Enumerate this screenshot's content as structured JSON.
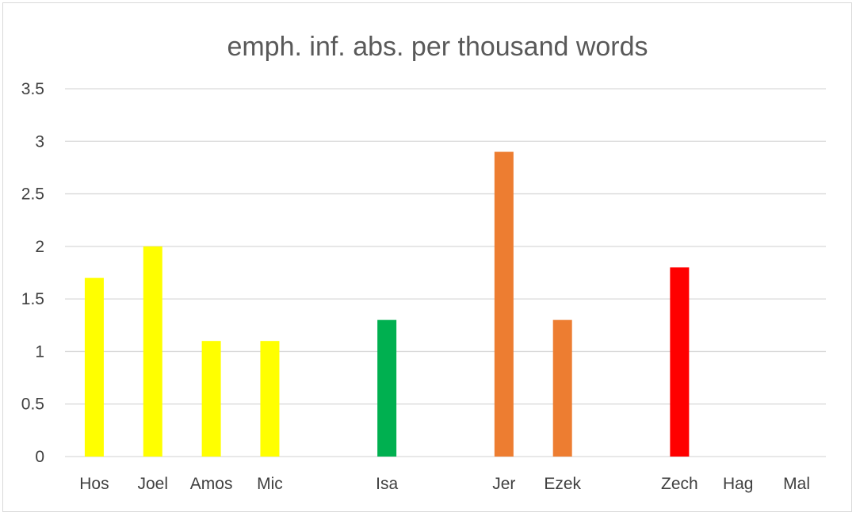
{
  "chart_data": {
    "type": "bar",
    "title": "emph. inf. abs. per thousand words",
    "xlabel": "",
    "ylabel": "",
    "ylim": [
      0,
      3.5
    ],
    "y_ticks": [
      "0",
      "0.5",
      "1",
      "1.5",
      "2",
      "2.5",
      "3",
      "3.5"
    ],
    "grid": true,
    "legend": "none",
    "categories": [
      "Hos",
      "Joel",
      "Amos",
      "Mic",
      "",
      "Isa",
      "",
      "Jer",
      "Ezek",
      "",
      "Zech",
      "Hag",
      "Mal"
    ],
    "values": [
      1.7,
      2.0,
      1.1,
      1.1,
      null,
      1.3,
      null,
      2.9,
      1.3,
      null,
      1.8,
      0,
      0
    ],
    "colors": [
      "#FFFF00",
      "#FFFF00",
      "#FFFF00",
      "#FFFF00",
      null,
      "#00B050",
      null,
      "#ED7D31",
      "#ED7D31",
      null,
      "#FF0000",
      "#FF0000",
      "#FF0000"
    ]
  }
}
